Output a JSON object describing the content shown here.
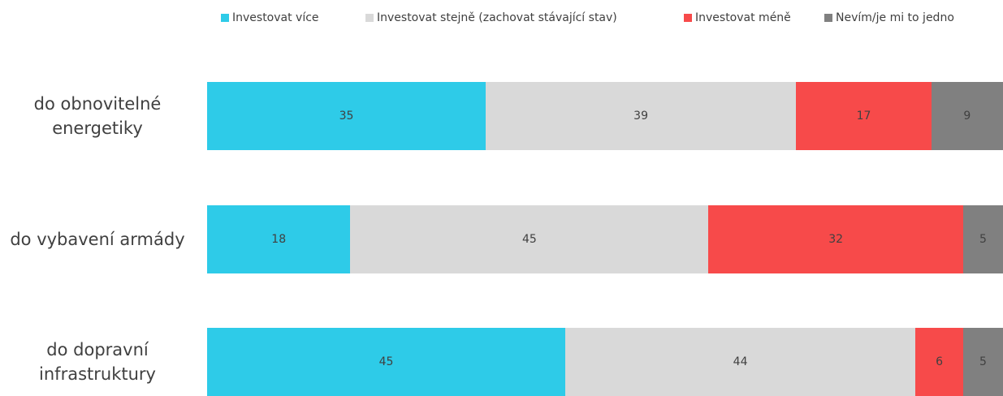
{
  "chart_data": {
    "type": "stacked-bar-horizontal",
    "categories": [
      "do obnovitelné energetiky",
      "do vybavení armády",
      "do dopravní infrastruktury"
    ],
    "series": [
      {
        "name": "Investovat více",
        "color": "#2ecbe8",
        "values": [
          35,
          18,
          45
        ]
      },
      {
        "name": "Investovat stejně (zachovat stávající stav)",
        "color": "#d9d9d9",
        "values": [
          39,
          45,
          44
        ]
      },
      {
        "name": "Investovat méně",
        "color": "#f74a4a",
        "values": [
          17,
          32,
          6
        ]
      },
      {
        "name": "Nevím/je mi to jedno",
        "color": "#808080",
        "values": [
          9,
          5,
          5
        ]
      }
    ],
    "xlim": [
      0,
      100
    ]
  }
}
